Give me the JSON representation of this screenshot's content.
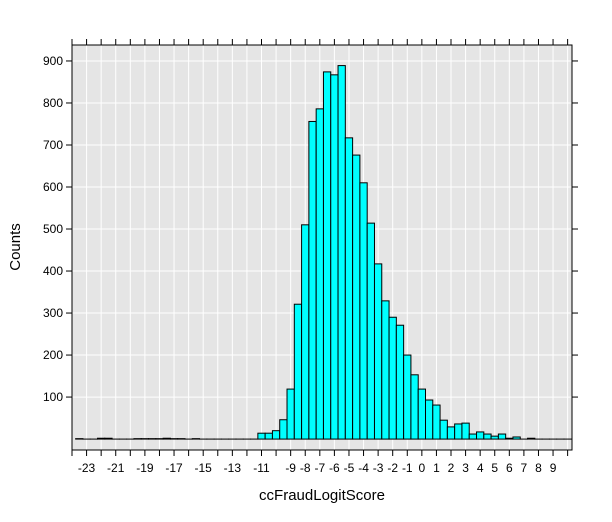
{
  "chart_data": {
    "type": "bar",
    "subtype": "histogram",
    "xlabel": "ccFraudLogitScore",
    "ylabel": "Counts",
    "bin_start": -23.75,
    "bin_width": 0.5,
    "values": [
      1,
      0,
      0,
      2,
      2,
      0,
      0,
      0,
      1,
      1,
      1,
      1,
      2,
      1,
      1,
      0,
      1,
      0,
      0,
      0,
      0,
      0,
      0,
      0,
      0,
      14,
      14,
      20,
      46,
      119,
      321,
      510,
      756,
      786,
      874,
      867,
      889,
      717,
      676,
      610,
      514,
      417,
      329,
      290,
      271,
      200,
      153,
      119,
      93,
      81,
      45,
      29,
      36,
      38,
      12,
      17,
      12,
      7,
      12,
      2,
      5,
      0,
      2,
      0,
      0,
      0,
      0,
      0
    ],
    "xlim": [
      -24,
      10.3
    ],
    "ylim": [
      -26,
      938
    ],
    "x_ticks": [
      -23,
      -21,
      -19,
      -17,
      -15,
      -13,
      -11,
      -9,
      -8,
      -7,
      -6,
      -5,
      -4,
      -3,
      -2,
      -1,
      0,
      1,
      2,
      3,
      4,
      5,
      6,
      7,
      8,
      9
    ],
    "y_ticks": [
      100,
      200,
      300,
      400,
      500,
      600,
      700,
      800,
      900
    ],
    "grid": true,
    "colors": {
      "bar_fill": "#00ffff",
      "bar_stroke": "#000000",
      "panel_bg": "#e5e5e5",
      "grid": "#ffffff"
    }
  }
}
